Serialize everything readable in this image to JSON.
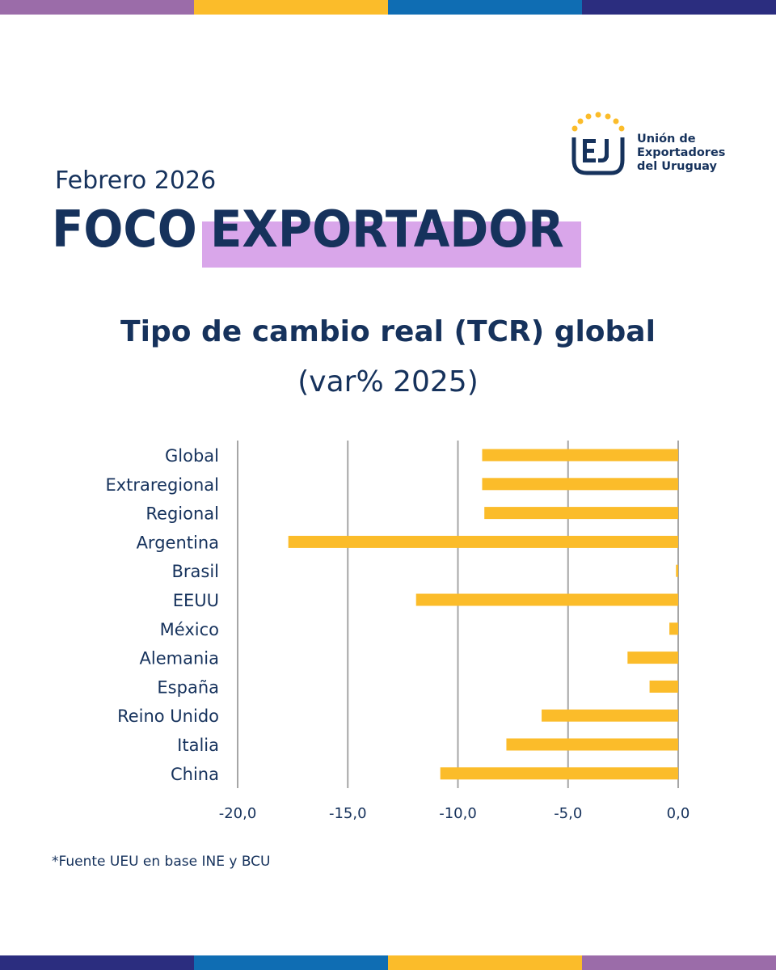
{
  "colors": {
    "navy": "#16325c",
    "bar": "#fbbc2a",
    "highlight": "#d9a6ea",
    "grid": "#a6a6a6",
    "stripe_top": [
      "#9b6ca9",
      "#fbbc2a",
      "#0f6db3",
      "#2b2d7f"
    ],
    "stripe_bottom": [
      "#2b2d7f",
      "#0f6db3",
      "#fbbc2a",
      "#9b6ca9"
    ]
  },
  "logo": {
    "line1": "Unión de",
    "line2": "Exportadores",
    "line3": "del Uruguay"
  },
  "header": {
    "edition": "Febrero 2026",
    "title_word1": "FOCO",
    "title_word2": "EXPORTADOR"
  },
  "chart_data": {
    "type": "bar",
    "orientation": "horizontal",
    "title": "Tipo de cambio real (TCR) global",
    "subtitle": "(var% 2025)",
    "categories": [
      "Global",
      "Extraregional",
      "Regional",
      "Argentina",
      "Brasil",
      "EEUU",
      "México",
      "Alemania",
      "España",
      "Reino Unido",
      "Italia",
      "China"
    ],
    "values": [
      -8.9,
      -8.9,
      -8.8,
      -17.7,
      -0.1,
      -11.9,
      -0.4,
      -2.3,
      -1.3,
      -6.2,
      -7.8,
      -10.8
    ],
    "xlim": [
      -20,
      0
    ],
    "xticks": [
      "-20,0",
      "-15,0",
      "-10,0",
      "-5,0",
      "0,0"
    ],
    "xtick_values": [
      -20,
      -15,
      -10,
      -5,
      0
    ],
    "grid": "vertical",
    "legend": "none"
  },
  "footer": {
    "source": "*Fuente UEU en base INE y BCU"
  }
}
